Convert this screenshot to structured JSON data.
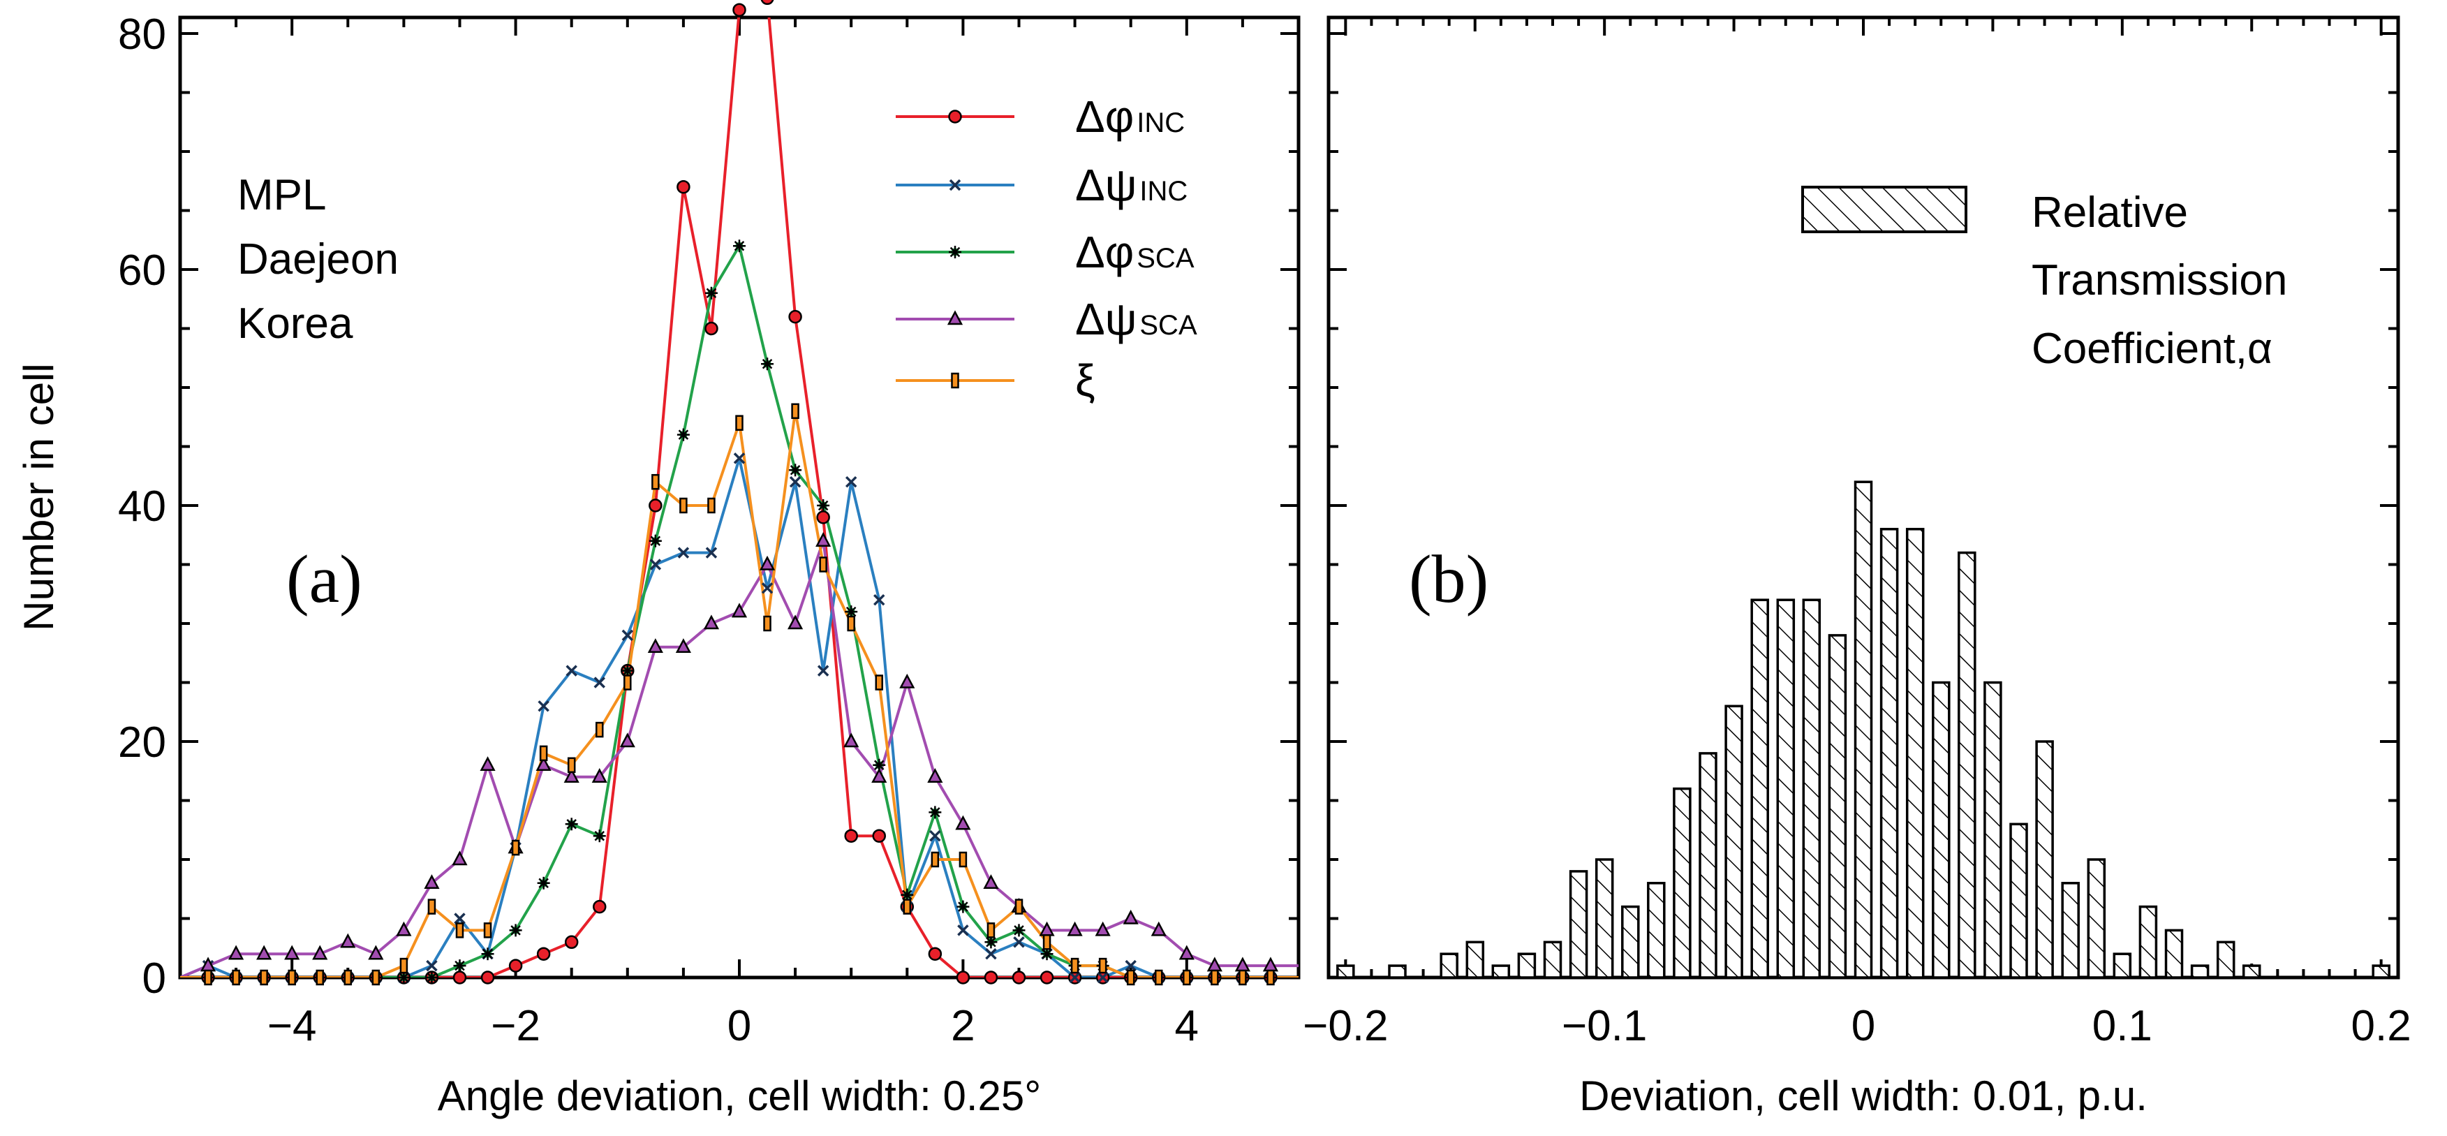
{
  "chart_data": [
    {
      "type": "line",
      "panel_label": "(a)",
      "ylabel": "Number in cell",
      "xlabel": "Angle deviation, cell width: 0.25°",
      "xlim": [
        -5,
        5
      ],
      "ylim": [
        0,
        85
      ],
      "xticks": [
        "−4",
        "−2",
        "0",
        "2",
        "4"
      ],
      "xtick_values": [
        -4,
        -2,
        0,
        2,
        4
      ],
      "yticks": [
        "0",
        "20",
        "40",
        "60",
        "80"
      ],
      "ytick_values": [
        0,
        20,
        40,
        60,
        80
      ],
      "location_text": [
        "MPL",
        "Daejeon",
        "Korea"
      ],
      "x": [
        -5,
        -4.75,
        -4.5,
        -4.25,
        -4,
        -3.75,
        -3.5,
        -3.25,
        -3,
        -2.75,
        -2.5,
        -2.25,
        -2,
        -1.75,
        -1.5,
        -1.25,
        -1,
        -0.75,
        -0.5,
        -0.25,
        0,
        0.25,
        0.5,
        0.75,
        1,
        1.25,
        1.5,
        1.75,
        2,
        2.25,
        2.5,
        2.75,
        3,
        3.25,
        3.5,
        3.75,
        4,
        4.25,
        4.5,
        4.75,
        5
      ],
      "series": [
        {
          "name": "Δφ",
          "sub": "INC",
          "color": "#e8202a",
          "marker": "circle",
          "values": [
            0,
            0,
            0,
            0,
            0,
            0,
            0,
            0,
            0,
            0,
            0,
            0,
            1,
            2,
            3,
            6,
            26,
            40,
            67,
            55,
            82,
            83,
            56,
            39,
            12,
            12,
            6,
            2,
            0,
            0,
            0,
            0,
            0,
            0,
            0,
            0,
            0,
            0,
            0,
            0,
            0
          ]
        },
        {
          "name": "Δψ",
          "sub": "INC",
          "color": "#2a7fc0",
          "marker": "x",
          "values": [
            0,
            1,
            0,
            0,
            0,
            0,
            0,
            0,
            0,
            1,
            5,
            2,
            11,
            23,
            26,
            25,
            29,
            35,
            36,
            36,
            44,
            33,
            42,
            26,
            42,
            32,
            6,
            12,
            4,
            2,
            3,
            2,
            0,
            0,
            1,
            0,
            0,
            0,
            0,
            0,
            0
          ]
        },
        {
          "name": "Δφ",
          "sub": "SCA",
          "color": "#22a24a",
          "marker": "star",
          "values": [
            0,
            0,
            0,
            0,
            0,
            0,
            0,
            0,
            0,
            0,
            1,
            2,
            4,
            8,
            13,
            12,
            26,
            37,
            46,
            58,
            62,
            52,
            43,
            40,
            31,
            18,
            7,
            14,
            6,
            3,
            4,
            2,
            1,
            1,
            0,
            0,
            0,
            0,
            0,
            0,
            0
          ]
        },
        {
          "name": "Δψ",
          "sub": "SCA",
          "color": "#a24cb0",
          "marker": "triangle",
          "values": [
            0,
            1,
            2,
            2,
            2,
            2,
            3,
            2,
            4,
            8,
            10,
            18,
            11,
            18,
            17,
            17,
            20,
            28,
            28,
            30,
            31,
            35,
            30,
            37,
            20,
            17,
            25,
            17,
            13,
            8,
            6,
            4,
            4,
            4,
            5,
            4,
            2,
            1,
            1,
            1,
            1
          ]
        },
        {
          "name": "ξ",
          "sub": "",
          "color": "#f5901e",
          "marker": "bar",
          "values": [
            0,
            0,
            0,
            0,
            0,
            0,
            0,
            0,
            1,
            6,
            4,
            4,
            11,
            19,
            18,
            21,
            25,
            42,
            40,
            40,
            47,
            30,
            48,
            35,
            30,
            25,
            6,
            10,
            10,
            4,
            6,
            3,
            1,
            1,
            0,
            0,
            0,
            0,
            0,
            0,
            0
          ]
        }
      ]
    },
    {
      "type": "bar",
      "panel_label": "(b)",
      "xlabel": "Deviation, cell width: 0.01, p.u.",
      "xlim": [
        -0.21,
        0.21
      ],
      "ylim": [
        0,
        85
      ],
      "xticks": [
        "−0.2",
        "−0.1",
        "0",
        "0.1",
        "0.2"
      ],
      "xtick_values": [
        -0.2,
        -0.1,
        0,
        0.1,
        0.2
      ],
      "legend": [
        "Relative",
        "Transmission",
        "Coefficient,α"
      ],
      "bar_width": 0.01,
      "x": [
        -0.2,
        -0.18,
        -0.16,
        -0.15,
        -0.14,
        -0.13,
        -0.12,
        -0.11,
        -0.1,
        -0.09,
        -0.08,
        -0.07,
        -0.06,
        -0.05,
        -0.04,
        -0.03,
        -0.02,
        -0.01,
        0,
        0.01,
        0.02,
        0.03,
        0.04,
        0.05,
        0.06,
        0.07,
        0.08,
        0.09,
        0.1,
        0.11,
        0.12,
        0.13,
        0.14,
        0.15,
        0.2
      ],
      "values": [
        1,
        1,
        2,
        3,
        1,
        2,
        3,
        9,
        10,
        6,
        8,
        16,
        19,
        23,
        32,
        32,
        32,
        29,
        42,
        38,
        38,
        25,
        36,
        25,
        13,
        20,
        8,
        10,
        2,
        6,
        4,
        1,
        3,
        1,
        1
      ]
    }
  ]
}
